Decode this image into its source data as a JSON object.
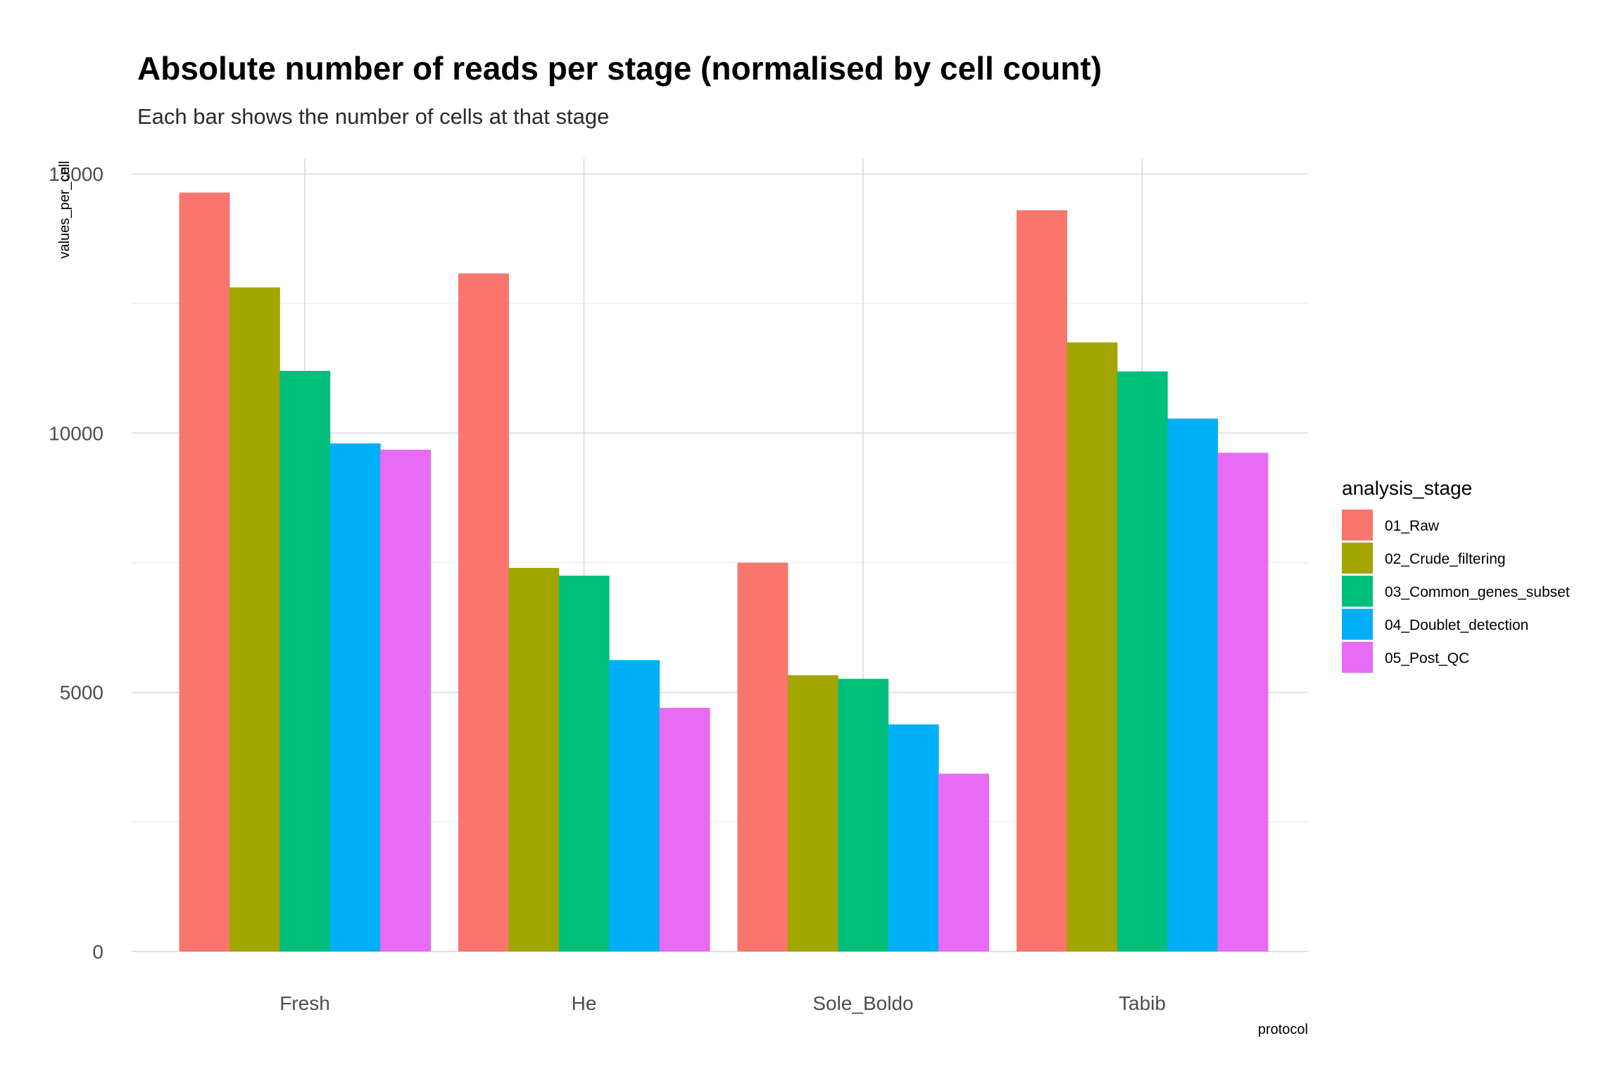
{
  "chart_data": {
    "type": "bar",
    "title": "Absolute number of reads per stage (normalised by cell count)",
    "subtitle": "Each bar shows the number of cells at that stage",
    "xlabel": "protocol",
    "ylabel": "values_per_cell",
    "categories": [
      "Fresh",
      "He",
      "Sole_Boldo",
      "Tabib"
    ],
    "ylim": [
      0,
      15300
    ],
    "yticks": [
      "0",
      "5000",
      "10000",
      "15000"
    ],
    "legend_title": "analysis_stage",
    "legend_position": "right",
    "grid": true,
    "series": [
      {
        "name": "01_Raw",
        "color": "#F8766D",
        "values": [
          14640,
          13080,
          7500,
          14300
        ]
      },
      {
        "name": "02_Crude_filtering",
        "color": "#A3A500",
        "values": [
          12810,
          7400,
          5330,
          11750
        ]
      },
      {
        "name": "03_Common_genes_subset",
        "color": "#00BF7D",
        "values": [
          11200,
          7250,
          5260,
          11190
        ]
      },
      {
        "name": "04_Doublet_detection",
        "color": "#00B0F6",
        "values": [
          9800,
          5620,
          4380,
          10280
        ]
      },
      {
        "name": "05_Post_QC",
        "color": "#E76BF3",
        "values": [
          9680,
          4700,
          3430,
          9620
        ]
      }
    ]
  }
}
